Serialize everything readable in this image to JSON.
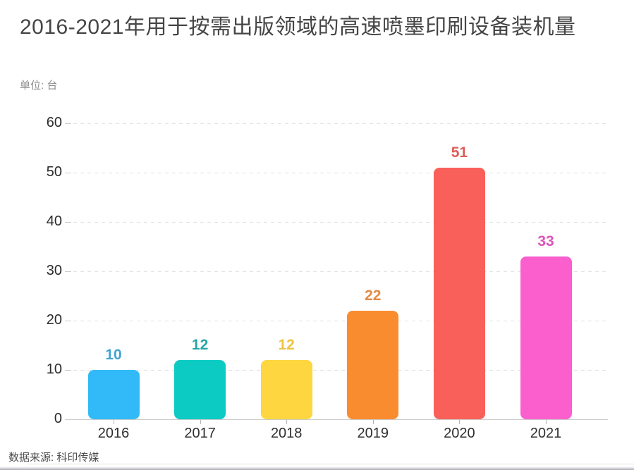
{
  "chart_data": {
    "type": "bar",
    "title": "2016-2021年用于按需出版领域的高速喷墨印刷设备装机量",
    "unit_label": "单位: 台",
    "categories": [
      "2016",
      "2017",
      "2018",
      "2019",
      "2020",
      "2021"
    ],
    "values": [
      10,
      12,
      12,
      22,
      51,
      33
    ],
    "bar_colors": [
      "#32BAF8",
      "#0BCBC3",
      "#FDD640",
      "#FA8C30",
      "#FA605A",
      "#FA5FCD"
    ],
    "value_label_colors": [
      "#42A3D3",
      "#27A4A6",
      "#EDC53E",
      "#E38A43",
      "#DD5D58",
      "#DC54B9"
    ],
    "xlabel": "",
    "ylabel": "",
    "ylim": [
      0,
      60
    ],
    "y_ticks": [
      0,
      10,
      20,
      30,
      40,
      50,
      60
    ],
    "grid": "horizontal-dashed",
    "legend_position": "none",
    "source": "数据来源: 科印传媒"
  }
}
